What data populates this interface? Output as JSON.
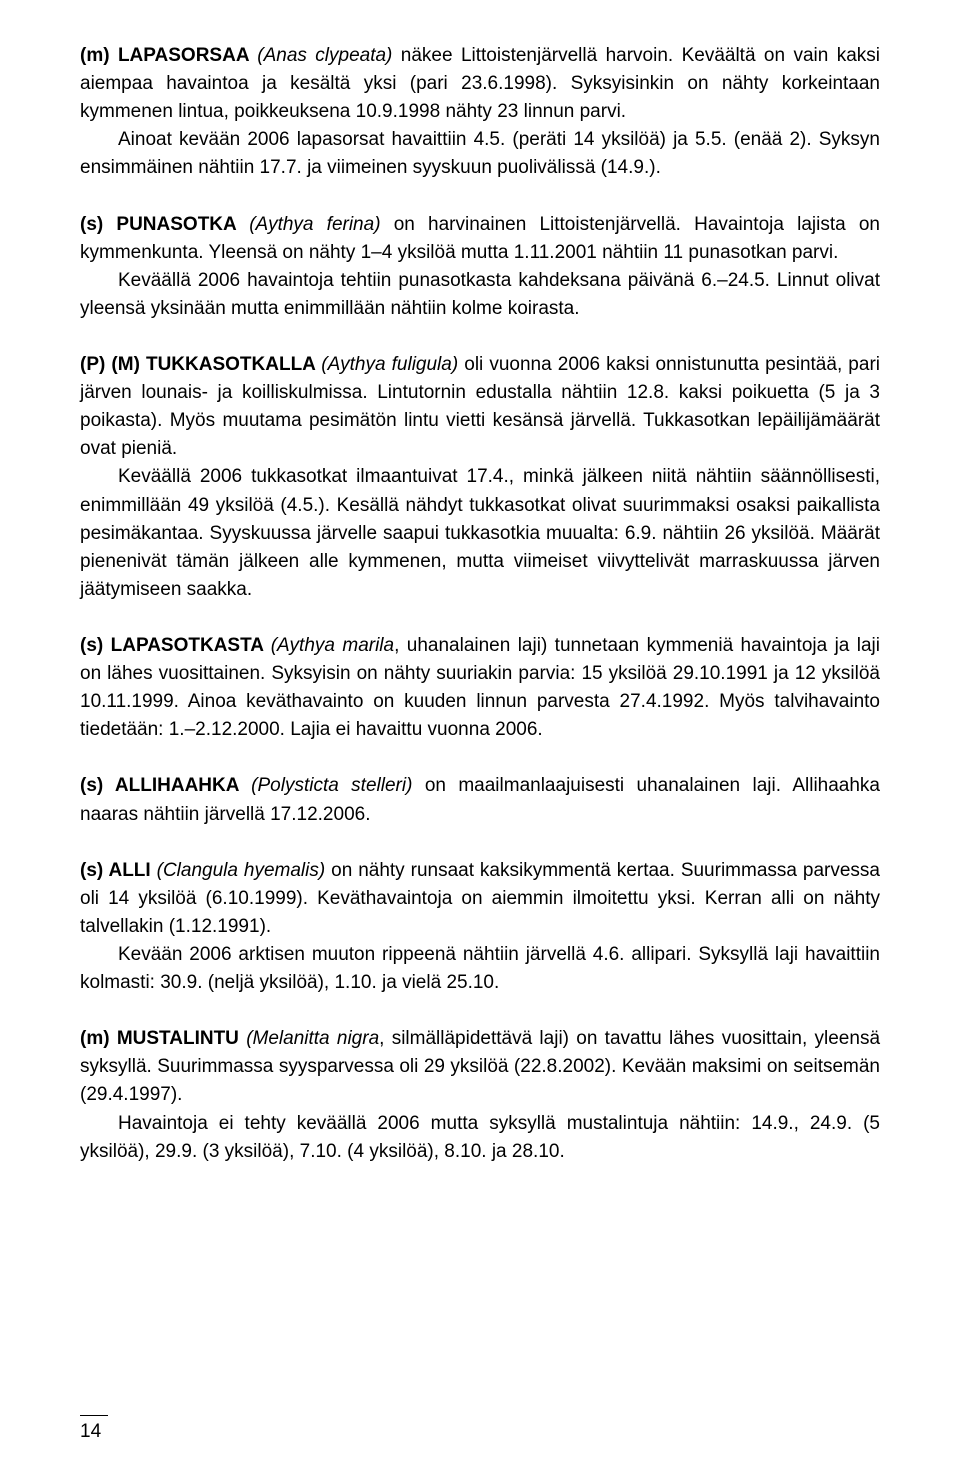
{
  "page_number": "14",
  "entries": {
    "lapasorsaa": {
      "head_prefix": "(m) ",
      "head_bold": "LAPASORSAA ",
      "head_italic": "(Anas clypeata)",
      "head_rest": " näkee Littoistenjärvellä harvoin. Keväältä on vain kaksi aiempaa havaintoa ja kesältä yksi (pari 23.6.1998). Syksyisinkin on nähty korkeintaan kymmenen lintua, poikkeuksena 10.9.1998 nähty 23 linnun parvi.",
      "p1": "Ainoat kevään 2006 lapasorsat havaittiin 4.5. (peräti 14 yksilöä) ja 5.5. (enää 2). Syksyn ensimmäinen nähtiin 17.7. ja viimeinen syyskuun puolivälissä (14.9.)."
    },
    "punasotka": {
      "head_prefix": "(s) ",
      "head_bold": "PUNASOTKA ",
      "head_italic": "(Aythya ferina)",
      "head_rest": " on harvinainen Littoistenjärvellä. Havaintoja lajista on kymmenkunta. Yleensä on nähty 1–4 yksilöä mutta 1.11.2001 nähtiin 11 punasotkan parvi.",
      "p1": "Keväällä 2006 havaintoja tehtiin punasotkasta kahdeksana päivänä 6.–24.5. Linnut olivat yleensä yksinään mutta enimmillään nähtiin kolme koirasta."
    },
    "tukkasotkalla": {
      "head_prefix": "(P) (M) ",
      "head_bold": "TUKKASOTKALLA ",
      "head_italic": "(Aythya fuligula)",
      "head_rest": " oli vuonna 2006 kaksi onnistunutta pesintää, pari järven lounais- ja koilliskulmissa. Lintutornin edustalla nähtiin 12.8. kaksi poikuetta (5 ja 3 poikasta). Myös muutama pesimätön lintu vietti kesänsä järvellä. Tukkasotkan lepäilijämäärät ovat pieniä.",
      "p1": "Keväällä 2006 tukkasotkat ilmaantuivat 17.4., minkä jälkeen niitä nähtiin säännöllisesti, enimmillään 49 yksilöä (4.5.). Kesällä nähdyt tukkasotkat olivat suurimmaksi osaksi paikallista pesimäkantaa. Syyskuussa järvelle saapui tukkasotkia muualta: 6.9. nähtiin 26 yksilöä. Määrät pienenivät tämän jälkeen alle kymmenen, mutta viimeiset viivyttelivät marraskuussa järven jäätymiseen saakka."
    },
    "lapasotkasta": {
      "head_prefix": "(s) ",
      "head_bold": "LAPASOTKASTA ",
      "head_italic": "(Aythya marila",
      "head_rest": ", uhanalainen laji) tunnetaan kymmeniä havaintoja ja laji on lähes vuosittainen. Syksyisin on nähty suuriakin parvia: 15 yksilöä 29.10.1991 ja 12 yksilöä 10.11.1999. Ainoa keväthavainto on kuuden linnun parvesta 27.4.1992. Myös talvihavainto tiedetään: 1.–2.12.2000. Lajia ei havaittu vuonna 2006."
    },
    "allihaahka": {
      "head_prefix": "(s) ",
      "head_bold": "ALLIHAAHKA ",
      "head_italic": "(Polysticta stelleri)",
      "head_rest": " on maailmanlaajuisesti uhanalainen laji. Allihaahka naaras nähtiin järvellä 17.12.2006."
    },
    "alli": {
      "head_prefix": "(s) ",
      "head_bold": "ALLI ",
      "head_italic": "(Clangula hyemalis)",
      "head_rest": " on nähty runsaat kaksikymmentä kertaa. Suurimmassa parvessa oli 14 yksilöä (6.10.1999). Keväthavaintoja on aiemmin ilmoitettu yksi. Kerran alli on nähty talvellakin (1.12.1991).",
      "p1": "Kevään 2006 arktisen muuton rippeenä nähtiin järvellä 4.6. allipari. Syksyllä laji havaittiin kolmasti: 30.9. (neljä yksilöä), 1.10. ja vielä 25.10."
    },
    "mustalintu": {
      "head_prefix": "(m) ",
      "head_bold": "MUSTALINTU ",
      "head_italic": "(Melanitta nigra",
      "head_rest": ", silmälläpidettävä laji) on tavattu lähes vuosittain, yleensä syksyllä. Suurimmassa syysparvessa oli 29 yksilöä (22.8.2002). Kevään maksimi on seitsemän (29.4.1997).",
      "p1": "Havaintoja ei tehty keväällä 2006 mutta syksyllä mustalintuja nähtiin: 14.9., 24.9. (5 yksilöä), 29.9. (3 yksilöä), 7.10. (4 yksilöä), 8.10. ja 28.10."
    }
  }
}
